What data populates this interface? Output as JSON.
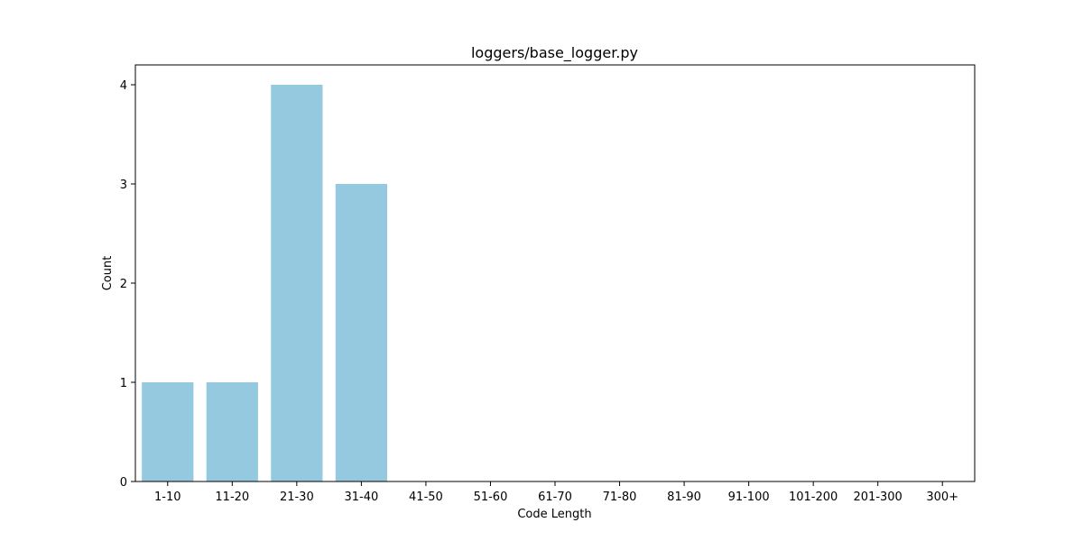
{
  "chart_data": {
    "type": "bar",
    "title": "loggers/base_logger.py",
    "xlabel": "Code Length",
    "ylabel": "Count",
    "categories": [
      "1-10",
      "11-20",
      "21-30",
      "31-40",
      "41-50",
      "51-60",
      "61-70",
      "71-80",
      "81-90",
      "91-100",
      "101-200",
      "201-300",
      "300+"
    ],
    "values": [
      1,
      1,
      4,
      3,
      0,
      0,
      0,
      0,
      0,
      0,
      0,
      0,
      0
    ],
    "y_ticks": [
      0,
      1,
      2,
      3,
      4
    ],
    "ylim": [
      0,
      4.2
    ],
    "grid": false,
    "bar_color": "#95c9e0"
  }
}
